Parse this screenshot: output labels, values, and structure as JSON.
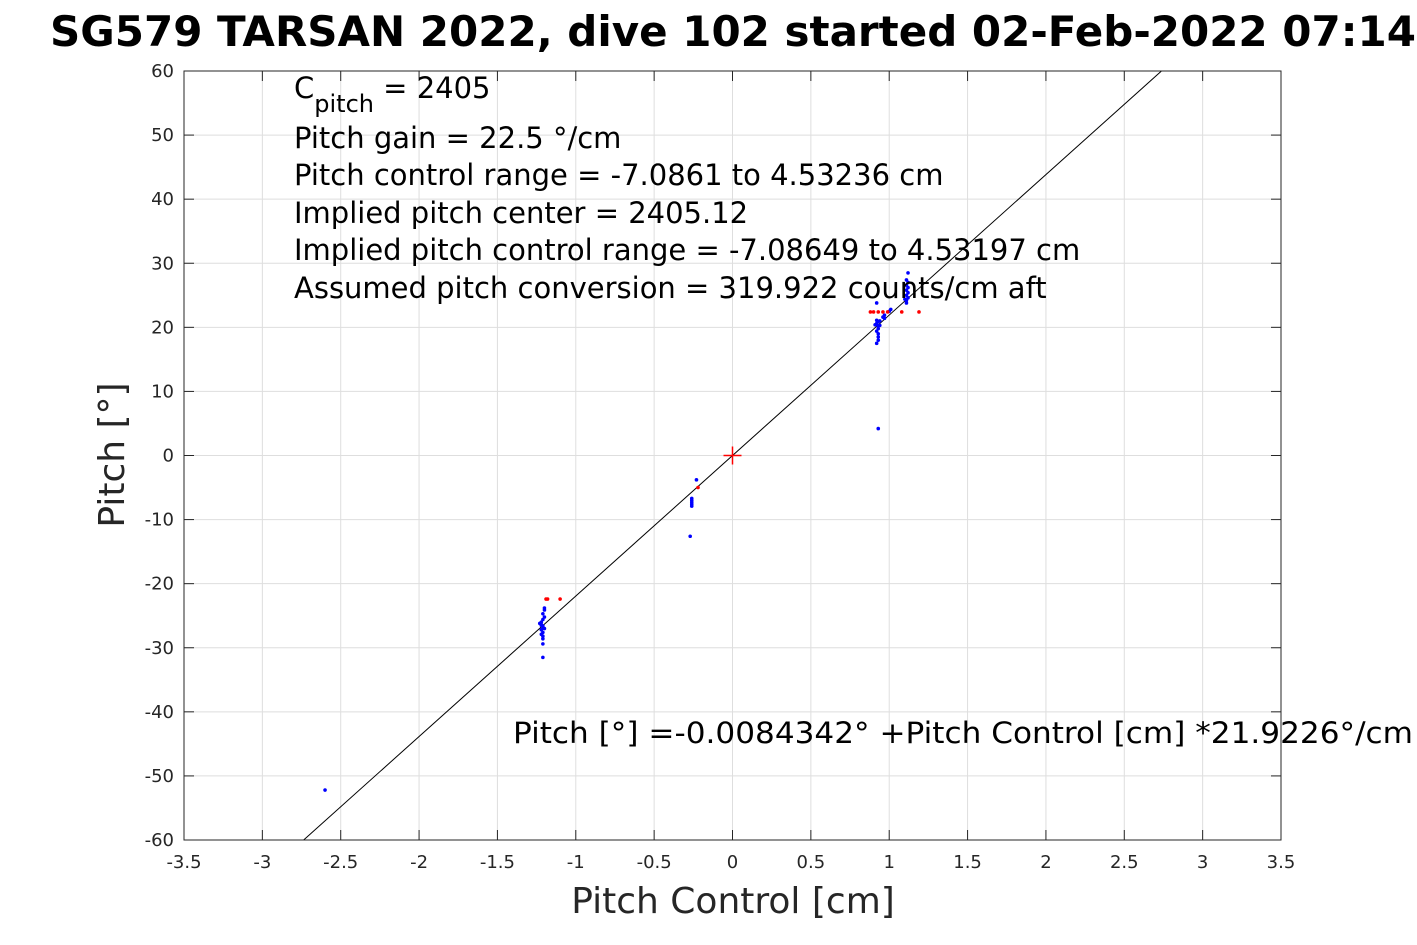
{
  "chart_data": {
    "type": "scatter",
    "title": "SG579 TARSAN 2022, dive 102 started 02-Feb-2022 07:14",
    "xlabel": "Pitch Control [cm]",
    "ylabel": "Pitch [°]",
    "xlim": [
      -3.5,
      3.5
    ],
    "ylim": [
      -60,
      60
    ],
    "xticks": [
      -3.5,
      -3,
      -2.5,
      -2,
      -1.5,
      -1,
      -0.5,
      0,
      0.5,
      1,
      1.5,
      2,
      2.5,
      3,
      3.5
    ],
    "xtick_labels": [
      "-3.5",
      "-3",
      "-2.5",
      "-2",
      "-1.5",
      "-1",
      "-0.5",
      "0",
      "0.5",
      "1",
      "1.5",
      "2",
      "2.5",
      "3",
      "3.5"
    ],
    "yticks": [
      60,
      50,
      40,
      30,
      20,
      10,
      0,
      -10,
      -20,
      -30,
      -40,
      -50,
      -60
    ],
    "ytick_labels": [
      "60",
      "50",
      "40",
      "30",
      "20",
      "10",
      "0",
      "-10",
      "-20",
      "-30",
      "-40",
      "-50",
      "-60"
    ],
    "grid": true,
    "annotations": {
      "c_pitch_label": "C",
      "c_pitch_sub": "pitch",
      "c_pitch_value": " = 2405",
      "lines": [
        "Pitch gain = 22.5 °/cm",
        "Pitch control range = -7.0861 to 4.53236 cm",
        "Implied pitch center = 2405.12",
        "Implied pitch control range = -7.08649 to 4.53197 cm",
        "Assumed pitch conversion = 319.922 counts/cm aft"
      ],
      "fit_equation": "Pitch [°] =-0.0084342° +Pitch Control [cm] *21.9226°/cm"
    },
    "fit_line": {
      "intercept": -0.0084342,
      "slope": 21.9226,
      "color": "#000000"
    },
    "center_marker": {
      "x": 0,
      "y": 0,
      "color": "#ff0000"
    },
    "series": [
      {
        "color": "#0000ff",
        "points": [
          [
            -2.6,
            -52.2
          ],
          [
            -1.23,
            -26.2
          ],
          [
            -1.22,
            -26.5
          ],
          [
            -1.21,
            -26.8
          ],
          [
            -1.22,
            -27.2
          ],
          [
            -1.21,
            -27.6
          ],
          [
            -1.22,
            -27.9
          ],
          [
            -1.21,
            -28.2
          ],
          [
            -1.22,
            -26.0
          ],
          [
            -1.21,
            -25.6
          ],
          [
            -1.2,
            -25.2
          ],
          [
            -1.21,
            -24.7
          ],
          [
            -1.2,
            -24.1
          ],
          [
            -1.2,
            -23.8
          ],
          [
            -1.21,
            -28.6
          ],
          [
            -1.21,
            -29.4
          ],
          [
            -1.22,
            -26.4
          ],
          [
            -1.2,
            -27.0
          ],
          [
            -1.21,
            -26.6
          ],
          [
            -1.21,
            -31.5
          ],
          [
            -0.23,
            -3.8
          ],
          [
            -0.26,
            -6.7
          ],
          [
            -0.26,
            -7.0
          ],
          [
            -0.26,
            -7.3
          ],
          [
            -0.26,
            -7.6
          ],
          [
            -0.26,
            -7.9
          ],
          [
            -0.27,
            -12.6
          ],
          [
            0.92,
            17.5
          ],
          [
            0.93,
            18.0
          ],
          [
            0.93,
            18.5
          ],
          [
            0.93,
            19.0
          ],
          [
            0.92,
            19.4
          ],
          [
            0.93,
            19.8
          ],
          [
            0.93,
            20.2
          ],
          [
            0.92,
            20.6
          ],
          [
            0.94,
            21.0
          ],
          [
            0.91,
            20.4
          ],
          [
            0.93,
            20.9
          ],
          [
            0.94,
            20.3
          ],
          [
            0.92,
            21.1
          ],
          [
            0.92,
            23.8
          ],
          [
            0.93,
            4.2
          ],
          [
            0.97,
            21.4
          ],
          [
            0.97,
            21.9
          ],
          [
            0.96,
            21.6
          ],
          [
            1.01,
            22.8
          ],
          [
            1.0,
            22.5
          ],
          [
            1.11,
            23.8
          ],
          [
            1.11,
            24.2
          ],
          [
            1.12,
            24.6
          ],
          [
            1.11,
            25.0
          ],
          [
            1.12,
            25.4
          ],
          [
            1.11,
            25.8
          ],
          [
            1.12,
            26.2
          ],
          [
            1.11,
            26.6
          ],
          [
            1.12,
            27.0
          ],
          [
            1.11,
            27.4
          ],
          [
            1.12,
            28.5
          ],
          [
            1.1,
            24.4
          ]
        ]
      },
      {
        "color": "#ff0000",
        "points": [
          [
            -1.19,
            -22.4
          ],
          [
            -1.18,
            -22.4
          ],
          [
            -1.1,
            -22.4
          ],
          [
            -0.22,
            -5.0
          ],
          [
            0.88,
            22.4
          ],
          [
            0.9,
            22.4
          ],
          [
            0.93,
            22.4
          ],
          [
            0.96,
            22.4
          ],
          [
            0.99,
            22.4
          ],
          [
            1.08,
            22.4
          ],
          [
            1.19,
            22.4
          ]
        ]
      }
    ]
  }
}
